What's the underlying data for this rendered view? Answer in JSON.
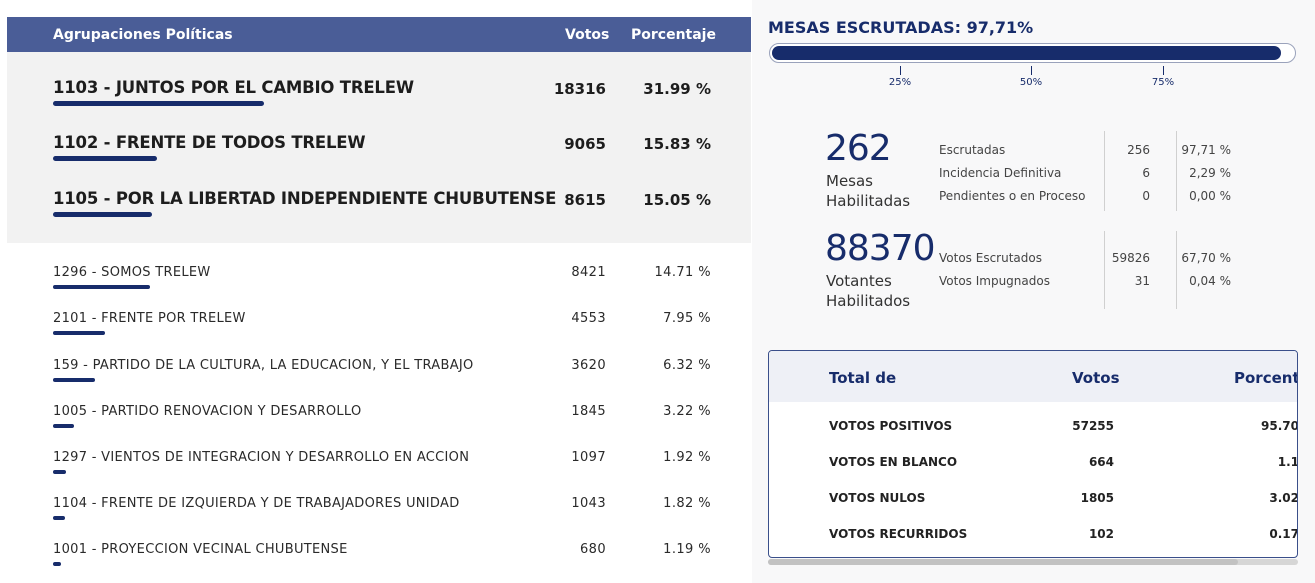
{
  "results": {
    "header": {
      "name": "Agrupaciones Políticas",
      "votes": "Votos",
      "pct": "Porcentaje"
    },
    "top": [
      {
        "name": "1103 - JUNTOS POR EL CAMBIO TRELEW",
        "votes": "18316",
        "pct": "31.99 %",
        "share": 31.99
      },
      {
        "name": "1102 - FRENTE DE TODOS TRELEW",
        "votes": "9065",
        "pct": "15.83 %",
        "share": 15.83
      },
      {
        "name": "1105 - POR LA LIBERTAD INDEPENDIENTE CHUBUTENSE",
        "votes": "8615",
        "pct": "15.05 %",
        "share": 15.05
      }
    ],
    "rows": [
      {
        "name": "1296 - SOMOS TRELEW",
        "votes": "8421",
        "pct": "14.71 %",
        "share": 14.71
      },
      {
        "name": "2101 - FRENTE POR TRELEW",
        "votes": "4553",
        "pct": "7.95 %",
        "share": 7.95
      },
      {
        "name": "159 - PARTIDO DE LA CULTURA, LA EDUCACION, Y EL TRABAJO",
        "votes": "3620",
        "pct": "6.32 %",
        "share": 6.32
      },
      {
        "name": "1005 - PARTIDO RENOVACION Y DESARROLLO",
        "votes": "1845",
        "pct": "3.22 %",
        "share": 3.22
      },
      {
        "name": "1297 - VIENTOS DE INTEGRACION Y DESARROLLO EN ACCION",
        "votes": "1097",
        "pct": "1.92 %",
        "share": 1.92
      },
      {
        "name": "1104 - FRENTE DE IZQUIERDA Y DE TRABAJADORES UNIDAD",
        "votes": "1043",
        "pct": "1.82 %",
        "share": 1.82
      },
      {
        "name": "1001 - PROYECCION VECINAL CHUBUTENSE",
        "votes": "680",
        "pct": "1.19 %",
        "share": 1.19
      }
    ]
  },
  "mesas": {
    "title": "MESAS ESCRUTADAS: 97,71%",
    "progress": 97.71,
    "ticks": [
      "25%",
      "50%",
      "75%"
    ]
  },
  "stats": {
    "mesas_count": "262",
    "mesas_label1": "Mesas",
    "mesas_label2": "Habilitadas",
    "mesas_rows": [
      {
        "label": "Escrutadas",
        "value": "256",
        "pct": "97,71 %"
      },
      {
        "label": "Incidencia Definitiva",
        "value": "6",
        "pct": "2,29 %"
      },
      {
        "label": "Pendientes o en Proceso",
        "value": "0",
        "pct": "0,00 %"
      }
    ],
    "votantes_count": "88370",
    "votantes_label1": "Votantes",
    "votantes_label2": "Habilitados",
    "votantes_rows": [
      {
        "label": "Votos Escrutados",
        "value": "59826",
        "pct": "67,70 %"
      },
      {
        "label": "Votos Impugnados",
        "value": "31",
        "pct": "0,04 %"
      }
    ]
  },
  "totals": {
    "header": {
      "name": "Total de",
      "votes": "Votos",
      "pct": "Porcenta"
    },
    "rows": [
      {
        "label": "VOTOS POSITIVOS",
        "votes": "57255",
        "pct": "95.70"
      },
      {
        "label": "VOTOS EN BLANCO",
        "votes": "664",
        "pct": "1.1"
      },
      {
        "label": "VOTOS NULOS",
        "votes": "1805",
        "pct": "3.02"
      },
      {
        "label": "VOTOS RECURRIDOS",
        "votes": "102",
        "pct": "0.17"
      }
    ]
  },
  "colors": {
    "accent": "#172c6b",
    "header_bg": "#4a5d97",
    "top_bg": "#f2f2f2"
  }
}
